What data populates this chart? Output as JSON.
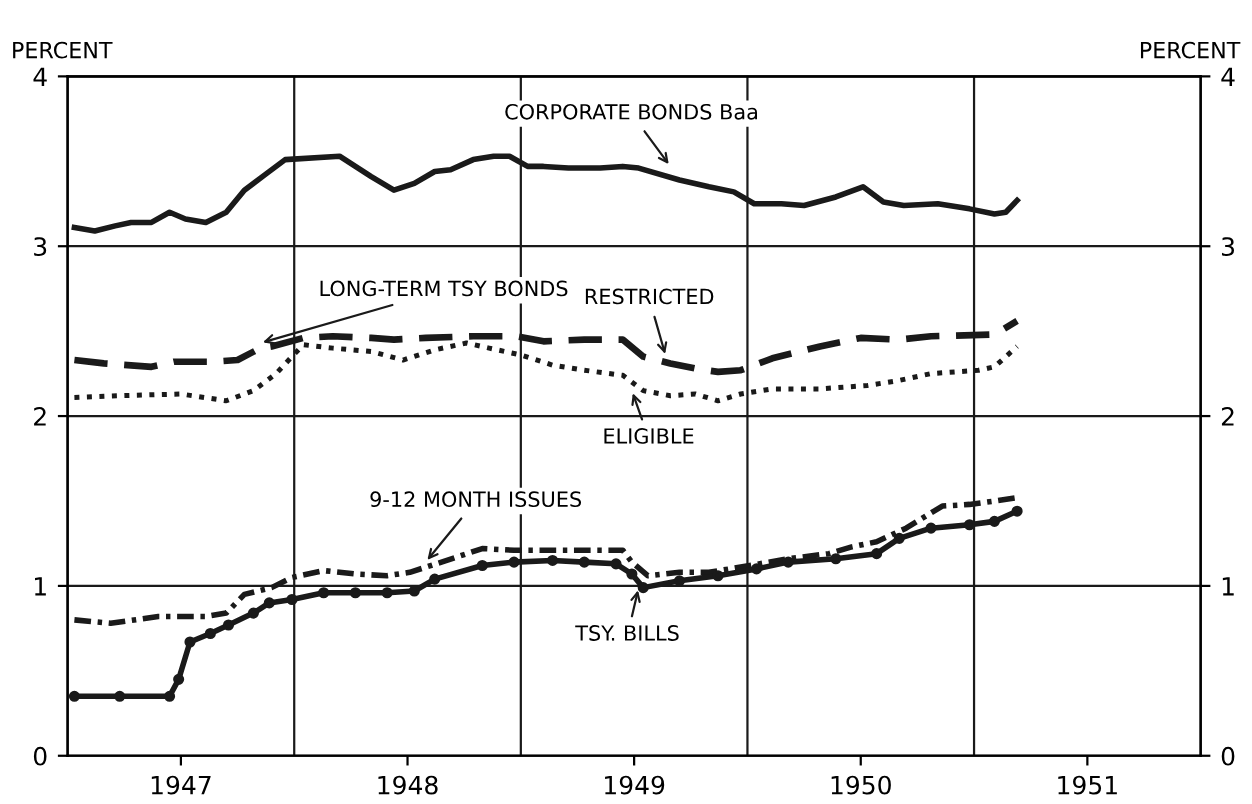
{
  "chart_data": {
    "type": "line",
    "ylabel": "PERCENT",
    "y2label": "PERCENT",
    "xlim": [
      1946.5,
      1951.5
    ],
    "xticks": [
      1947,
      1948,
      1949,
      1950,
      1951
    ],
    "ylim": [
      0,
      4
    ],
    "yticks": [
      0,
      1,
      2,
      3,
      4
    ],
    "y2lim": [
      0,
      4
    ],
    "y2ticks": [
      0,
      1,
      2,
      3,
      4
    ],
    "grid": "y",
    "legend": false,
    "ref_lines": [
      {
        "axis": "x",
        "value": 1947.5
      },
      {
        "axis": "x",
        "value": 1948.5
      },
      {
        "axis": "x",
        "value": 1949.5
      },
      {
        "axis": "x",
        "value": 1950.5
      }
    ],
    "series": [
      {
        "color": "#1a1a1a",
        "line_style": "solid",
        "marker": "none",
        "x": [
          1946.53,
          1946.62,
          1946.71,
          1946.78,
          1946.87,
          1946.95,
          1947.02,
          1947.11,
          1947.2,
          1947.28,
          1947.37,
          1947.46,
          1947.7,
          1947.84,
          1947.94,
          1948.03,
          1948.12,
          1948.19,
          1948.29,
          1948.38,
          1948.45,
          1948.53,
          1948.6,
          1948.71,
          1948.85,
          1948.95,
          1949.02,
          1949.2,
          1949.33,
          1949.44,
          1949.53,
          1949.65,
          1949.75,
          1949.89,
          1950.01,
          1950.1,
          1950.19,
          1950.34,
          1950.48,
          1950.59,
          1950.64,
          1950.69
        ],
        "values": [
          3.11,
          3.09,
          3.12,
          3.14,
          3.14,
          3.2,
          3.16,
          3.14,
          3.2,
          3.33,
          3.42,
          3.51,
          3.53,
          3.41,
          3.33,
          3.37,
          3.44,
          3.45,
          3.51,
          3.53,
          3.53,
          3.47,
          3.47,
          3.46,
          3.46,
          3.47,
          3.46,
          3.39,
          3.35,
          3.32,
          3.25,
          3.25,
          3.24,
          3.29,
          3.35,
          3.26,
          3.24,
          3.25,
          3.22,
          3.19,
          3.2,
          3.27
        ]
      },
      {
        "color": "#1a1a1a",
        "line_style": "dashed",
        "marker": "none",
        "x": [
          1946.53,
          1946.66,
          1946.87,
          1946.97,
          1947.14,
          1947.25,
          1947.35,
          1947.4,
          1947.54,
          1947.67,
          1947.84,
          1947.94,
          1948.08,
          1948.29,
          1948.48,
          1948.6,
          1948.78,
          1948.95,
          1949.04,
          1949.16,
          1949.27,
          1949.37,
          1949.47,
          1949.61,
          1949.82,
          1950.0,
          1950.17,
          1950.31,
          1950.59,
          1950.69
        ],
        "values": [
          2.33,
          2.31,
          2.29,
          2.32,
          2.32,
          2.33,
          2.4,
          2.41,
          2.46,
          2.47,
          2.46,
          2.45,
          2.46,
          2.47,
          2.47,
          2.44,
          2.45,
          2.45,
          2.35,
          2.31,
          2.28,
          2.26,
          2.27,
          2.34,
          2.41,
          2.46,
          2.45,
          2.47,
          2.48,
          2.56
        ]
      },
      {
        "color": "#1a1a1a",
        "line_style": "dotted",
        "marker": "none",
        "x": [
          1946.53,
          1946.73,
          1947.0,
          1947.2,
          1947.32,
          1947.42,
          1947.49,
          1947.54,
          1947.67,
          1947.84,
          1947.98,
          1948.12,
          1948.26,
          1948.36,
          1948.5,
          1948.64,
          1948.78,
          1948.95,
          1949.04,
          1949.16,
          1949.27,
          1949.37,
          1949.47,
          1949.61,
          1949.82,
          1950.03,
          1950.17,
          1950.31,
          1950.52,
          1950.59,
          1950.69
        ],
        "values": [
          2.11,
          2.12,
          2.13,
          2.09,
          2.15,
          2.25,
          2.35,
          2.42,
          2.4,
          2.38,
          2.33,
          2.39,
          2.43,
          2.4,
          2.36,
          2.3,
          2.27,
          2.24,
          2.15,
          2.12,
          2.13,
          2.09,
          2.13,
          2.16,
          2.16,
          2.18,
          2.21,
          2.25,
          2.27,
          2.29,
          2.41
        ]
      },
      {
        "color": "#1a1a1a",
        "line_style": "dashdot",
        "marker": "none",
        "x": [
          1946.53,
          1946.69,
          1946.9,
          1947.11,
          1947.2,
          1947.28,
          1947.4,
          1947.49,
          1947.63,
          1947.77,
          1947.91,
          1948.01,
          1948.15,
          1948.33,
          1948.47,
          1948.64,
          1948.78,
          1948.95,
          1948.99,
          1949.06,
          1949.2,
          1949.33,
          1949.51,
          1949.68,
          1949.86,
          1949.96,
          1950.07,
          1950.2,
          1950.36,
          1950.48,
          1950.59,
          1950.69
        ],
        "values": [
          0.8,
          0.78,
          0.82,
          0.82,
          0.84,
          0.95,
          0.99,
          1.05,
          1.09,
          1.07,
          1.06,
          1.08,
          1.14,
          1.22,
          1.21,
          1.21,
          1.21,
          1.21,
          1.14,
          1.06,
          1.08,
          1.08,
          1.12,
          1.16,
          1.19,
          1.23,
          1.26,
          1.34,
          1.47,
          1.48,
          1.5,
          1.52
        ]
      },
      {
        "color": "#1a1a1a",
        "line_style": "solid",
        "marker": "circle",
        "x": [
          1946.53,
          1946.73,
          1946.95,
          1946.99,
          1947.04,
          1947.13,
          1947.21,
          1947.32,
          1947.39,
          1947.49,
          1947.63,
          1947.77,
          1947.91,
          1948.03,
          1948.12,
          1948.33,
          1948.47,
          1948.64,
          1948.78,
          1948.92,
          1948.99,
          1949.04,
          1949.2,
          1949.37,
          1949.54,
          1949.68,
          1949.89,
          1950.07,
          1950.17,
          1950.31,
          1950.48,
          1950.59,
          1950.69
        ],
        "values": [
          0.35,
          0.35,
          0.35,
          0.45,
          0.67,
          0.72,
          0.77,
          0.84,
          0.9,
          0.92,
          0.96,
          0.96,
          0.96,
          0.97,
          1.04,
          1.12,
          1.14,
          1.15,
          1.14,
          1.13,
          1.07,
          0.99,
          1.03,
          1.06,
          1.1,
          1.14,
          1.16,
          1.19,
          1.28,
          1.34,
          1.36,
          1.38,
          1.44
        ]
      }
    ],
    "annotations": [
      {
        "text": "CORPORATE BONDS Baa",
        "x": 1949.16,
        "y": 3.47
      },
      {
        "text": "LONG-TERM TSY BONDS",
        "x": 1947.35,
        "y": 2.43
      },
      {
        "text": "RESTRICTED",
        "x": 1949.14,
        "y": 2.35
      },
      {
        "text": "ELIGIBLE",
        "x": 1948.99,
        "y": 2.15
      },
      {
        "text": "9-12 MONTH ISSUES",
        "x": 1948.08,
        "y": 1.14
      },
      {
        "text": "TSY. BILLS",
        "x": 1949.02,
        "y": 0.99
      }
    ]
  }
}
